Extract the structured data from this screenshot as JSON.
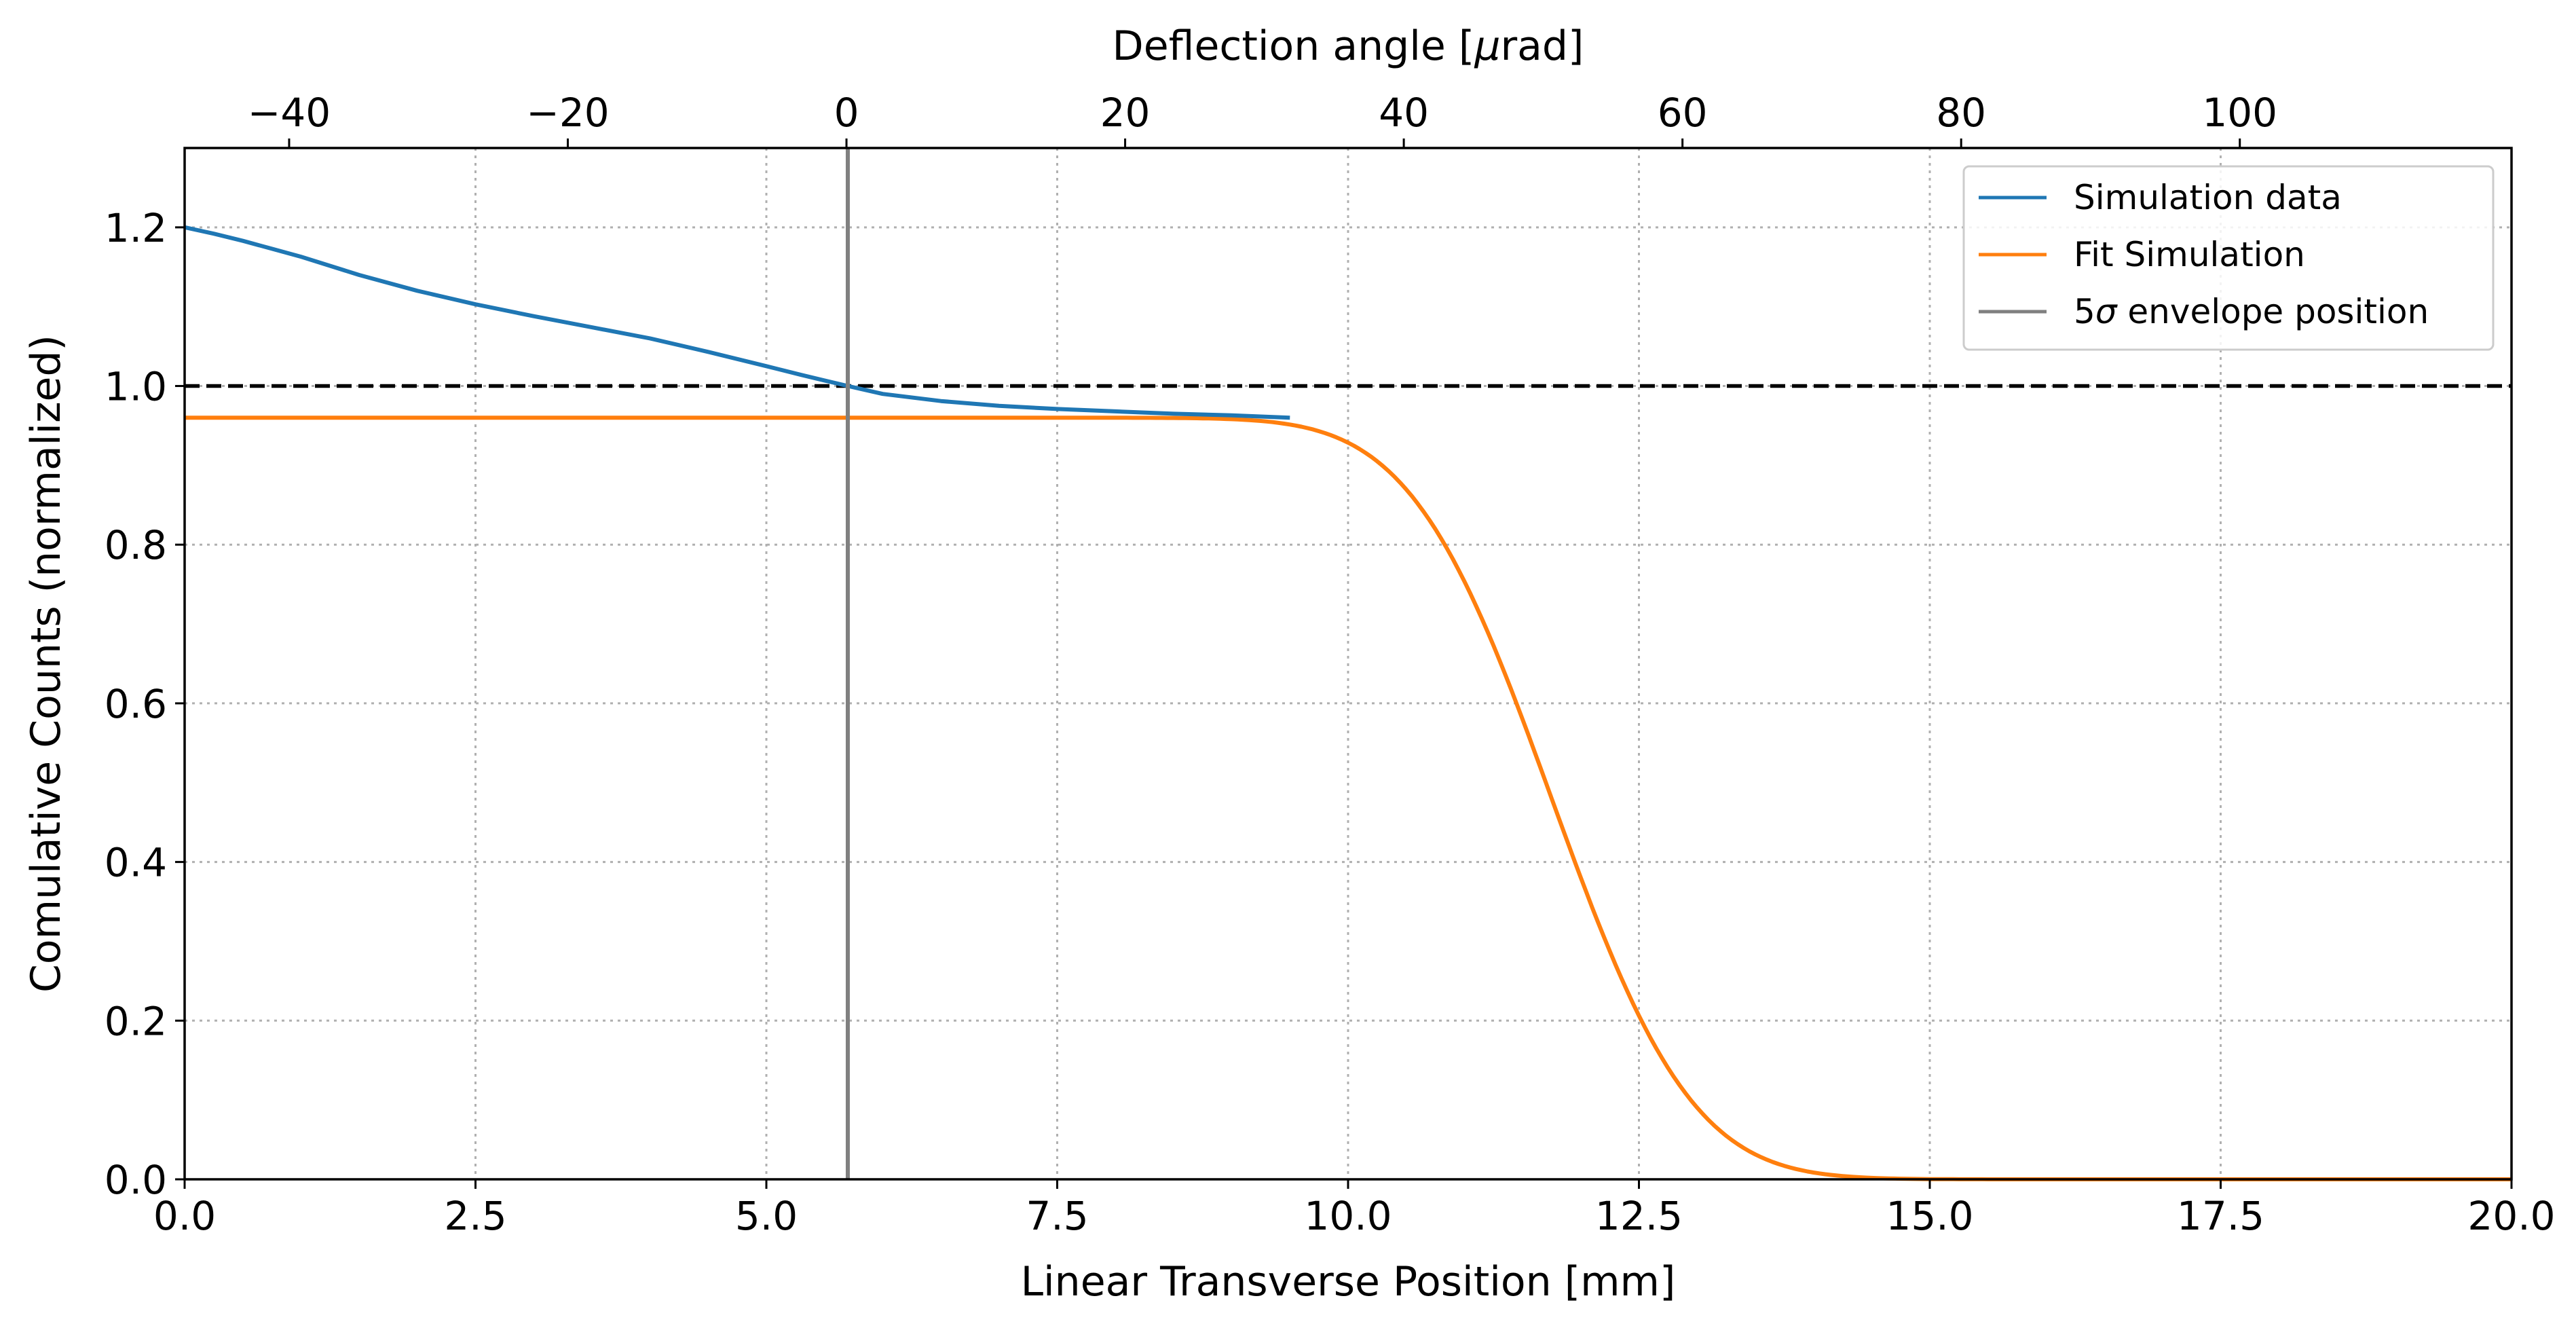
{
  "chart_data": {
    "type": "line",
    "xlabel": "Linear Transverse Position [mm]",
    "ylabel": "Comulative Counts (normalized)",
    "x2label_prefix": "Deflection angle [",
    "x2label_mu": "μ",
    "x2label_suffix": "rad]",
    "xlim": [
      0,
      20
    ],
    "ylim": [
      0,
      1.3
    ],
    "x2lim": [
      -47.5,
      119.5
    ],
    "xticks": [
      0.0,
      2.5,
      5.0,
      7.5,
      10.0,
      12.5,
      15.0,
      17.5,
      20.0
    ],
    "xtick_labels": [
      "0.0",
      "2.5",
      "5.0",
      "7.5",
      "10.0",
      "12.5",
      "15.0",
      "17.5",
      "20.0"
    ],
    "yticks": [
      0.0,
      0.2,
      0.4,
      0.6,
      0.8,
      1.0,
      1.2
    ],
    "ytick_labels": [
      "0.0",
      "0.2",
      "0.4",
      "0.6",
      "0.8",
      "1.0",
      "1.2"
    ],
    "x2ticks": [
      -40,
      -20,
      0,
      20,
      40,
      60,
      80,
      100
    ],
    "x2tick_labels": [
      "−40",
      "−20",
      "0",
      "20",
      "40",
      "60",
      "80",
      "100"
    ],
    "grid": true,
    "legend_position": "top-right",
    "reference_line_y": 1.0,
    "envelope_position_x": 5.7,
    "series": [
      {
        "name": "Simulation data",
        "color": "#1f77b4",
        "x": [
          0,
          0.25,
          0.5,
          0.75,
          1.0,
          1.5,
          2.0,
          2.5,
          3.0,
          3.5,
          4.0,
          4.5,
          5.0,
          5.3,
          5.5,
          5.7,
          6.0,
          6.5,
          7.0,
          7.5,
          8.0,
          8.5,
          9.0,
          9.5
        ],
        "y": [
          1.2,
          1.192,
          1.183,
          1.173,
          1.163,
          1.14,
          1.12,
          1.103,
          1.088,
          1.074,
          1.06,
          1.043,
          1.025,
          1.014,
          1.007,
          1.0,
          0.99,
          0.981,
          0.975,
          0.971,
          0.968,
          0.965,
          0.963,
          0.96
        ]
      },
      {
        "name": "Fit Simulation",
        "color": "#ff7f0e",
        "model": "erfc",
        "amplitude": 0.96,
        "center": 11.75,
        "sigma": 0.95,
        "x_range": [
          0,
          20
        ]
      }
    ],
    "legend_entries": [
      {
        "label": "Simulation data",
        "color": "#1f77b4"
      },
      {
        "label": "Fit Simulation",
        "color": "#ff7f0e"
      },
      {
        "label_prefix": "5",
        "label_sigma": "σ",
        "label_suffix": " envelope position",
        "color": "#808080"
      }
    ]
  }
}
